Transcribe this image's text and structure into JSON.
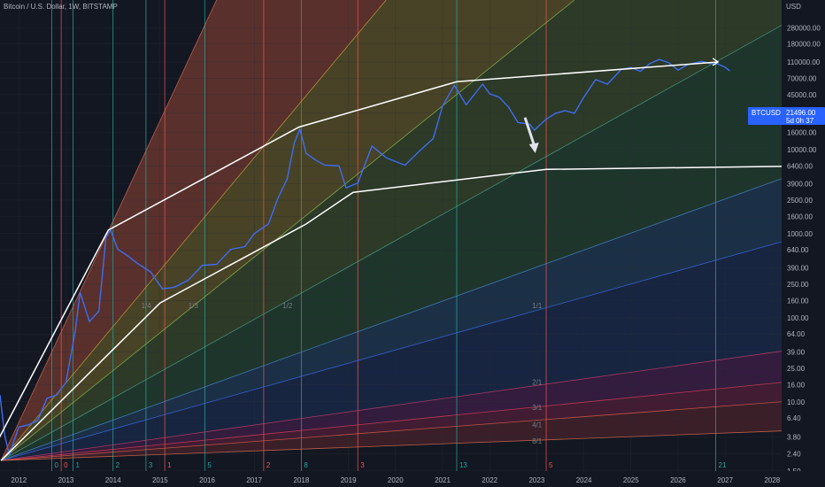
{
  "header": {
    "title": "Bitcoin / U.S. Dollar, 1W, BITSTAMP",
    "currency": "USD"
  },
  "price_badge": {
    "symbol": "BTCUSD",
    "price": "21496.00",
    "countdown": "5d 0h 37"
  },
  "colors": {
    "background": "#131722",
    "price_line": "#3d6df2",
    "trend_lines": "#ffffff",
    "badge": "#2962ff"
  },
  "chart_data": {
    "type": "line",
    "title": "Bitcoin / U.S. Dollar, 1W, BITSTAMP",
    "y_scale": "log",
    "ylim": [
      1.5,
      600000
    ],
    "xlim": [
      2011.6,
      2028.2
    ],
    "x_ticks": [
      "2012",
      "2013",
      "2014",
      "2015",
      "2016",
      "2017",
      "2018",
      "2019",
      "2020",
      "2021",
      "2022",
      "2023",
      "2024",
      "2025",
      "2026",
      "2027",
      "2028"
    ],
    "y_ticks": [
      "280000.00",
      "180000.00",
      "110000.00",
      "70000.00",
      "45000.00",
      "27000.00",
      "16000.00",
      "10000.00",
      "6400.00",
      "3900.00",
      "2500.00",
      "1600.00",
      "1000.00",
      "640.00",
      "390.00",
      "250.00",
      "160.00",
      "100.00",
      "64.00",
      "39.00",
      "25.00",
      "16.00",
      "10.00",
      "6.40",
      "3.80",
      "2.40",
      "1.50"
    ],
    "fib_time_lines": [
      {
        "label": "0",
        "x": 2012.7,
        "color": "#26a69a"
      },
      {
        "label": "0",
        "x": 2012.9,
        "color": "#ef5350"
      },
      {
        "label": "1",
        "x": 2013.15,
        "color": "#26a69a"
      },
      {
        "label": "2",
        "x": 2014.0,
        "color": "#26a69a"
      },
      {
        "label": "3",
        "x": 2014.7,
        "color": "#26a69a"
      },
      {
        "label": "1",
        "x": 2015.1,
        "color": "#ef5350"
      },
      {
        "label": "5",
        "x": 2015.95,
        "color": "#26a69a"
      },
      {
        "label": "2",
        "x": 2017.2,
        "color": "#ef5350"
      },
      {
        "label": "8",
        "x": 2018.0,
        "color": "#26a69a"
      },
      {
        "label": "3",
        "x": 2019.2,
        "color": "#ef5350"
      },
      {
        "label": "13",
        "x": 2021.3,
        "color": "#26a69a"
      },
      {
        "label": "5",
        "x": 2023.2,
        "color": "#ef5350"
      },
      {
        "label": "21",
        "x": 2026.8,
        "color": "#26a69a"
      }
    ],
    "gann_fan_labels": [
      {
        "label": "1/4",
        "x": 2014.6,
        "y": 130
      },
      {
        "label": "1/3",
        "x": 2015.6,
        "y": 130
      },
      {
        "label": "1/2",
        "x": 2017.6,
        "y": 130
      },
      {
        "label": "1/1",
        "x": 2022.9,
        "y": 130
      },
      {
        "label": "2/1",
        "x": 2022.9,
        "y": 16
      },
      {
        "label": "3/1",
        "x": 2022.9,
        "y": 8
      },
      {
        "label": "4/1",
        "x": 2022.9,
        "y": 5
      },
      {
        "label": "8/1",
        "x": 2022.9,
        "y": 3.2
      }
    ],
    "series": [
      {
        "type": "line",
        "x": [
          2011.6,
          2011.7,
          2011.8,
          2011.9,
          2012.0,
          2012.2,
          2012.4,
          2012.6,
          2012.8,
          2013.0,
          2013.2,
          2013.3,
          2013.5,
          2013.7,
          2013.85,
          2013.95,
          2014.1,
          2014.3,
          2014.5,
          2014.8,
          2015.05,
          2015.3,
          2015.6,
          2015.9,
          2016.2,
          2016.5,
          2016.8,
          2017.0,
          2017.3,
          2017.5,
          2017.7,
          2017.85,
          2017.97,
          2018.1,
          2018.3,
          2018.5,
          2018.8,
          2018.95,
          2019.2,
          2019.5,
          2019.8,
          2020.0,
          2020.2,
          2020.5,
          2020.8,
          2021.0,
          2021.25,
          2021.5,
          2021.85,
          2022.0,
          2022.2,
          2022.4,
          2022.6,
          2022.85,
          2022.95,
          2023.2,
          2023.4,
          2023.6,
          2023.8,
          2024.0,
          2024.25,
          2024.5,
          2024.8,
          2025.0,
          2025.2,
          2025.4,
          2025.6,
          2025.8,
          2026.0,
          2026.2,
          2026.5,
          2026.7,
          2026.85,
          2027.0,
          2027.1
        ],
        "y": [
          12,
          4,
          2.3,
          3.5,
          5,
          5.3,
          6,
          11,
          12,
          17,
          70,
          200,
          90,
          120,
          900,
          1100,
          650,
          550,
          450,
          350,
          220,
          230,
          280,
          420,
          430,
          650,
          700,
          1000,
          1300,
          2600,
          4500,
          12000,
          17500,
          9000,
          7500,
          6500,
          6400,
          3500,
          4000,
          11000,
          8000,
          7200,
          6500,
          9500,
          13500,
          33000,
          58000,
          34000,
          60000,
          46000,
          42000,
          32000,
          21000,
          20000,
          17000,
          23000,
          27000,
          29000,
          27000,
          42000,
          68000,
          60000,
          90000,
          94000,
          85000,
          105000,
          118000,
          108000,
          88000,
          102000,
          112000,
          105000,
          104000,
          95000,
          86000
        ]
      }
    ],
    "trend_lines": [
      {
        "x": [
          2011.58,
          2013.9,
          2017.95,
          2021.3,
          2026.85
        ],
        "y": [
          3.7,
          1100,
          18500,
          64000,
          110000
        ]
      },
      {
        "x": [
          2011.62,
          2015.0,
          2018.1,
          2019.1,
          2023.2,
          2028.2
        ],
        "y": [
          2.0,
          150,
          1300,
          3100,
          5800,
          6300
        ]
      }
    ]
  }
}
